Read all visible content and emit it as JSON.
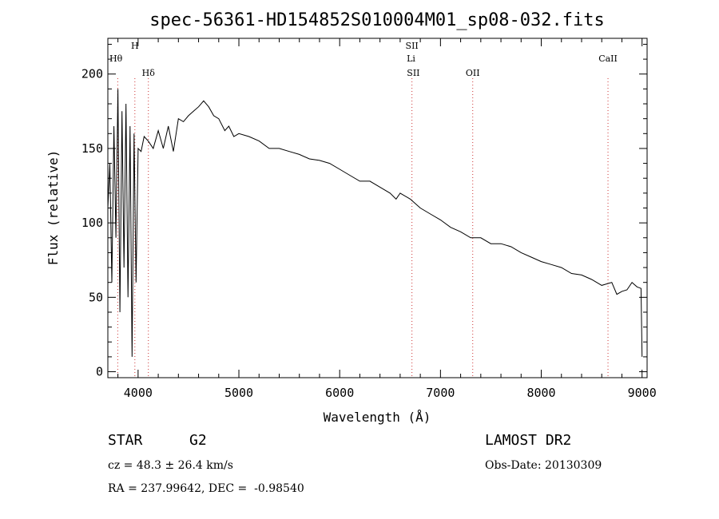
{
  "title": "spec-56361-HD154852S010004M01_sp08-032.fits",
  "chart_data": {
    "type": "line",
    "title": "spec-56361-HD154852S010004M01_sp08-032.fits",
    "xlabel": "Wavelength (Å)",
    "ylabel": "Flux (relative)",
    "xlim": [
      3700,
      9050
    ],
    "ylim": [
      -4,
      224
    ],
    "xticks": [
      4000,
      5000,
      6000,
      7000,
      8000,
      9000
    ],
    "yticks": [
      0,
      50,
      100,
      150,
      200
    ],
    "grid": false,
    "series": [
      {
        "x": [
          3700,
          3720,
          3740,
          3760,
          3780,
          3800,
          3820,
          3840,
          3860,
          3880,
          3900,
          3920,
          3940,
          3960,
          3980,
          4000,
          4030,
          4060,
          4100,
          4150,
          4200,
          4250,
          4300,
          4350,
          4400,
          4450,
          4500,
          4550,
          4600,
          4650,
          4700,
          4750,
          4800,
          4860,
          4900,
          4950,
          5000,
          5100,
          5200,
          5300,
          5400,
          5500,
          5600,
          5700,
          5800,
          5900,
          6000,
          6100,
          6200,
          6300,
          6400,
          6500,
          6560,
          6600,
          6700,
          6800,
          6900,
          7000,
          7100,
          7200,
          7300,
          7400,
          7500,
          7600,
          7700,
          7800,
          7900,
          8000,
          8100,
          8200,
          8300,
          8400,
          8500,
          8600,
          8700,
          8750,
          8800,
          8850,
          8900,
          8950,
          8990,
          9000
        ],
        "y": [
          110,
          140,
          60,
          165,
          90,
          190,
          40,
          175,
          70,
          180,
          50,
          165,
          10,
          160,
          60,
          150,
          148,
          158,
          155,
          150,
          162,
          150,
          165,
          148,
          170,
          168,
          172,
          175,
          178,
          182,
          178,
          172,
          170,
          162,
          165,
          158,
          160,
          158,
          155,
          150,
          150,
          148,
          146,
          143,
          142,
          140,
          136,
          132,
          128,
          128,
          124,
          120,
          116,
          120,
          116,
          110,
          106,
          102,
          97,
          94,
          90,
          90,
          86,
          86,
          84,
          80,
          77,
          74,
          72,
          70,
          66,
          65,
          62,
          58,
          60,
          52,
          54,
          55,
          60,
          57,
          56,
          10
        ]
      }
    ],
    "absorption_lines": [
      {
        "label": "Hθ",
        "x": 3798
      },
      {
        "label": "H",
        "x": 3968
      },
      {
        "label": "Hδ",
        "x": 4102
      },
      {
        "label": "SII",
        "x": 6717
      },
      {
        "label": "Li",
        "x": 6708
      },
      {
        "label": "SII",
        "x": 6731
      },
      {
        "label": "OII",
        "x": 7320
      },
      {
        "label": "CaII",
        "x": 8662
      }
    ]
  },
  "info": {
    "object_class": "STAR",
    "subclass": "G2",
    "survey": "LAMOST DR2",
    "cz": "cz = 48.3 ± 26.4 km/s",
    "obs_date": "Obs-Date: 20130309",
    "coords": "RA = 237.99642, DEC =  -0.98540"
  },
  "colors": {
    "axes": "#000000",
    "line_marker": "#cc3333"
  }
}
